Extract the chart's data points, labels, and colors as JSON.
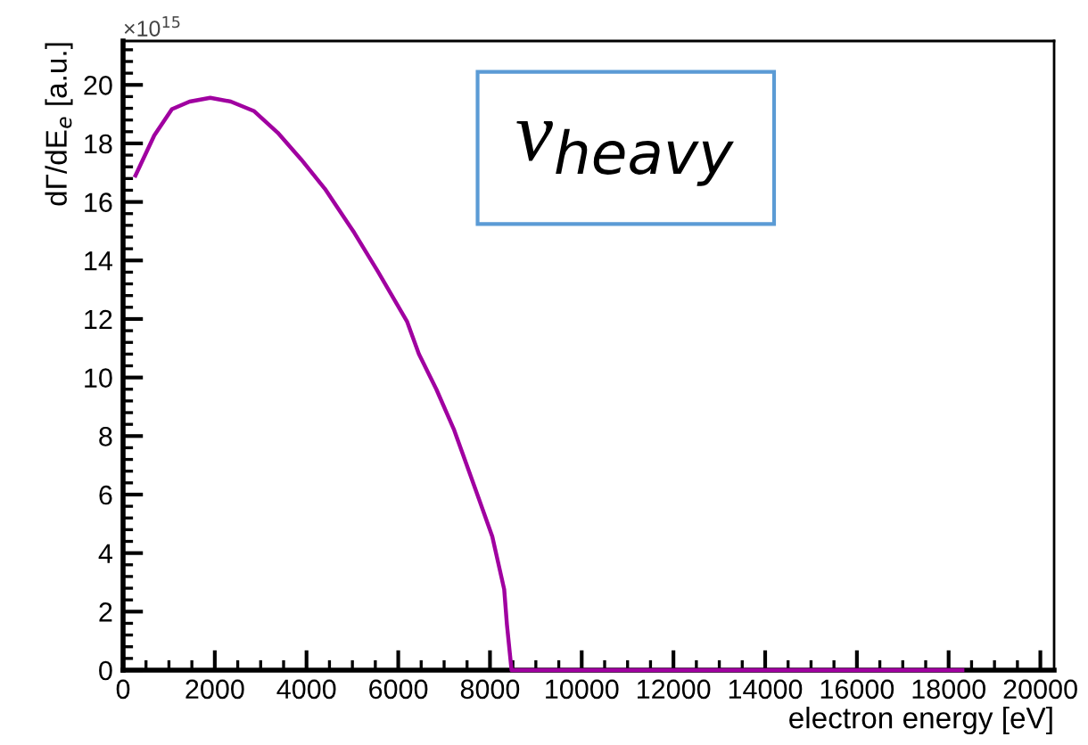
{
  "chart_data": {
    "type": "line",
    "xlabel": "electron energy [eV]",
    "ylabel": "dΓ/dE$_{e}$ [a.u.]",
    "x": [
      270,
      680,
      1065,
      1450,
      1900,
      2350,
      2860,
      3370,
      3880,
      4400,
      5040,
      5550,
      6190,
      6450,
      6830,
      7220,
      7730,
      8050,
      8310,
      8370,
      8470,
      18300
    ],
    "series": [
      {
        "color": "#a000a0",
        "values": [
          16.9,
          18.27,
          19.17,
          19.43,
          19.56,
          19.43,
          19.1,
          18.37,
          17.46,
          16.45,
          14.95,
          13.64,
          11.92,
          10.8,
          9.6,
          8.2,
          5.98,
          4.57,
          2.76,
          1.55,
          0,
          0
        ]
      }
    ],
    "xlim": [
      0,
      20300
    ],
    "xticks": [
      0,
      2000,
      4000,
      6000,
      8000,
      10000,
      12000,
      14000,
      16000,
      18000,
      20000
    ],
    "ylim": [
      0,
      21.5
    ],
    "yticks": [
      0,
      2,
      4,
      6,
      8,
      10,
      12,
      14,
      16,
      18,
      20
    ],
    "annotations": [
      "×10$^{15}$",
      "ν$_{heavy}$"
    ],
    "grid": false,
    "marker": "none",
    "line_style": "solid"
  }
}
